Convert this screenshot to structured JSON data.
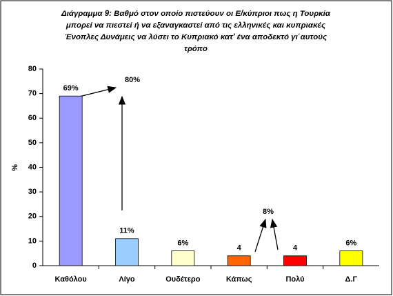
{
  "chart_data": {
    "type": "bar",
    "title": [
      "Διάγραμμα 9: Βαθμό στον οποίο πιστεύουν οι Ε/κύπριοι  πως η Τουρκία",
      "μπορεί να πιεστεί ή να εξαναγκαστεί από τις ελληνικές και κυπριακές",
      "Ένοπλες Δυνάμεις να λύσει το Κυπριακό κατ' ένα αποδεκτό γι΄αυτούς",
      "τρόπο"
    ],
    "y_label": "%",
    "categories": [
      "Καθόλου",
      "Λίγο",
      "Ουδέτερο",
      "Κάπως",
      "Πολύ",
      "Δ.Γ"
    ],
    "values": [
      69,
      11,
      6,
      4,
      4,
      6
    ],
    "value_labels": [
      "69%",
      "11%",
      "6%",
      "4",
      "4",
      "6%"
    ],
    "colors": [
      "#9999ff",
      "#99ccff",
      "#ffffcc",
      "#ff6600",
      "#ff0000",
      "#ffff00"
    ],
    "ylim": [
      0,
      80
    ],
    "yticks": [
      0,
      10,
      20,
      30,
      40,
      50,
      60,
      70,
      80
    ],
    "annotations": [
      "80%",
      "8%"
    ]
  }
}
